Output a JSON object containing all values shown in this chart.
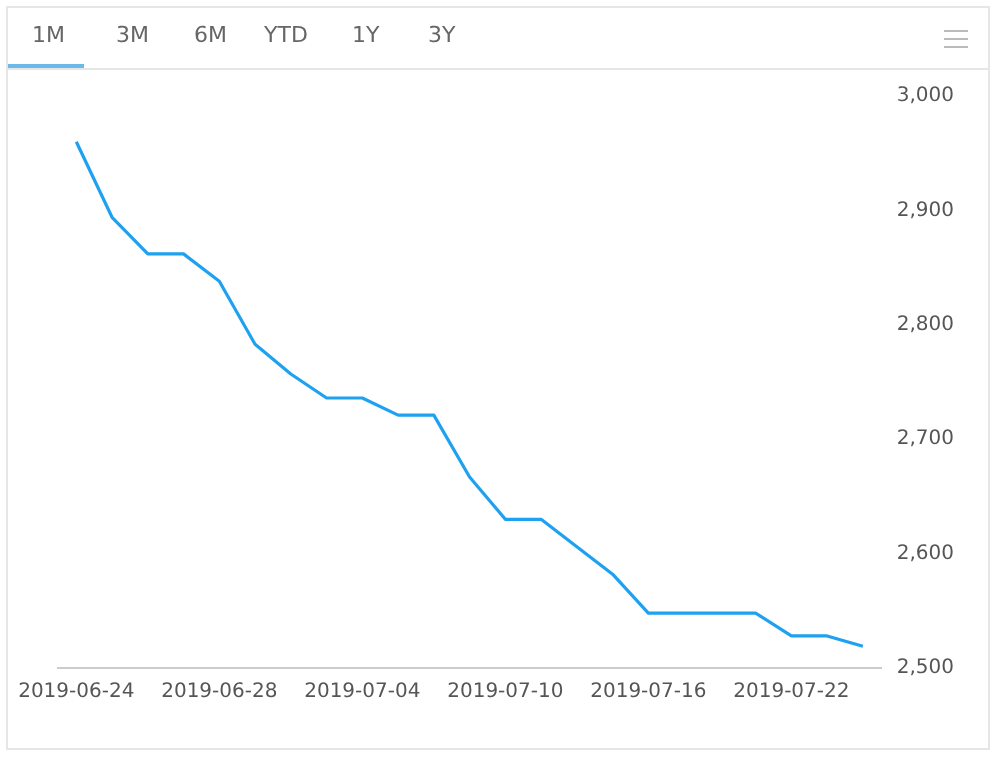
{
  "chart_data": {
    "type": "line",
    "categories": [
      "2019-06-24",
      null,
      null,
      null,
      "2019-06-28",
      null,
      null,
      null,
      "2019-07-04",
      null,
      null,
      null,
      "2019-07-10",
      null,
      null,
      null,
      "2019-07-16",
      null,
      null,
      null,
      "2019-07-22",
      null,
      null
    ],
    "series": [
      {
        "color": "#1ea1f0",
        "values": [
          2960,
          2894,
          2862,
          2862,
          2838,
          2783,
          2757,
          2736,
          2736,
          2721,
          2721,
          2667,
          2630,
          2630,
          2606,
          2582,
          2548,
          2548,
          2548,
          2548,
          2528,
          2528,
          2519
        ]
      }
    ],
    "ylim": [
      2500,
      3000
    ],
    "yticks": [
      {
        "value": 2500,
        "label": "2,500"
      },
      {
        "value": 2600,
        "label": "2,600"
      },
      {
        "value": 2700,
        "label": "2,700"
      },
      {
        "value": 2800,
        "label": "2,800"
      },
      {
        "value": 2900,
        "label": "2,900"
      },
      {
        "value": 3000,
        "label": "3,000"
      }
    ],
    "annotations": [
      "1M",
      "3M",
      "6M",
      "YTD",
      "1Y",
      "3Y"
    ],
    "grid": false,
    "legend": false,
    "marker": "none",
    "line_style": "solid"
  }
}
